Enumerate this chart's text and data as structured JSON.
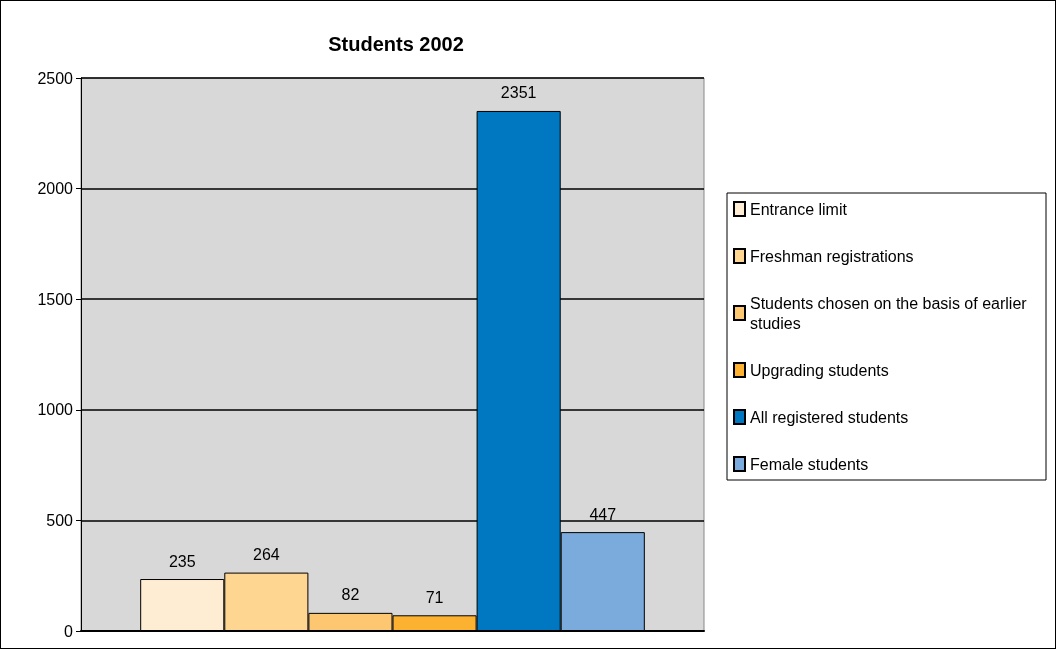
{
  "chart_data": {
    "type": "bar",
    "title": "Students 2002",
    "categories": [
      null
    ],
    "series": [
      {
        "name": "Entrance limit",
        "color": "#feecd3",
        "values": [
          235
        ]
      },
      {
        "name": "Freshman registrations",
        "color": "#fed591",
        "values": [
          264
        ]
      },
      {
        "name": "Students chosen on the basis of earlier studies",
        "color": "#fdc671",
        "values": [
          82
        ]
      },
      {
        "name": "Upgrading students",
        "color": "#fcb131",
        "values": [
          71
        ]
      },
      {
        "name": "All registered students",
        "color": "#0077c1",
        "values": [
          2351
        ]
      },
      {
        "name": "Female students",
        "color": "#7aabdc",
        "values": [
          447
        ]
      }
    ],
    "ylim": [
      0,
      2500
    ],
    "yticks": [
      0,
      500,
      1000,
      1500,
      2000,
      2500
    ],
    "grid": "y",
    "legend": "right",
    "data_labels": true
  }
}
